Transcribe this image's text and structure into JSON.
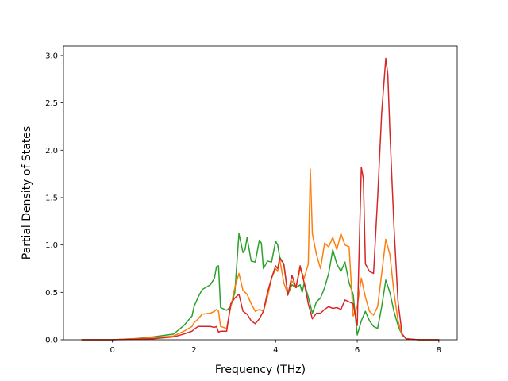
{
  "chart_data": {
    "type": "line",
    "title": "",
    "xlabel": "Frequency (THz)",
    "ylabel": "Partial Density of States",
    "xlim": [
      -1.2,
      8.45
    ],
    "ylim": [
      0,
      3.1
    ],
    "grid": false,
    "legend": "none",
    "xticks": [
      0,
      2,
      4,
      6,
      8
    ],
    "xtick_labels": [
      "0",
      "2",
      "4",
      "6",
      "8"
    ],
    "yticks": [
      0,
      0.5,
      1.0,
      1.5,
      2.0,
      2.5,
      3.0
    ],
    "ytick_labels": [
      "0.0",
      "0.5",
      "1.0",
      "1.5",
      "2.0",
      "2.5",
      "3.0"
    ],
    "series": [
      {
        "color": "#2ca02c",
        "x": [
          -0.75,
          0,
          0.5,
          1.0,
          1.5,
          1.75,
          1.95,
          2.0,
          2.1,
          2.2,
          2.4,
          2.5,
          2.55,
          2.6,
          2.65,
          2.8,
          2.9,
          3.0,
          3.1,
          3.2,
          3.25,
          3.3,
          3.4,
          3.5,
          3.6,
          3.65,
          3.7,
          3.8,
          3.9,
          4.0,
          4.05,
          4.1,
          4.2,
          4.3,
          4.4,
          4.5,
          4.6,
          4.65,
          4.7,
          4.8,
          4.9,
          5.0,
          5.1,
          5.2,
          5.3,
          5.4,
          5.5,
          5.6,
          5.7,
          5.8,
          5.9,
          6.0,
          6.1,
          6.2,
          6.3,
          6.4,
          6.5,
          6.6,
          6.7,
          6.8,
          6.9,
          7.0,
          7.1,
          7.2,
          7.5,
          8.0
        ],
        "values": [
          0,
          0,
          0.01,
          0.03,
          0.06,
          0.15,
          0.25,
          0.35,
          0.45,
          0.53,
          0.58,
          0.65,
          0.77,
          0.78,
          0.34,
          0.31,
          0.35,
          0.5,
          1.12,
          0.92,
          0.95,
          1.08,
          0.83,
          0.82,
          1.05,
          1.02,
          0.75,
          0.83,
          0.82,
          1.04,
          1.0,
          0.87,
          0.8,
          0.48,
          0.58,
          0.55,
          0.58,
          0.5,
          0.6,
          0.45,
          0.28,
          0.4,
          0.44,
          0.55,
          0.7,
          0.95,
          0.8,
          0.72,
          0.82,
          0.6,
          0.48,
          0.05,
          0.2,
          0.3,
          0.2,
          0.14,
          0.12,
          0.35,
          0.63,
          0.5,
          0.3,
          0.15,
          0.05,
          0.01,
          0,
          0
        ]
      },
      {
        "color": "#ff7f0e",
        "x": [
          -0.75,
          0,
          0.5,
          1.0,
          1.5,
          1.75,
          1.95,
          2.0,
          2.1,
          2.2,
          2.4,
          2.5,
          2.55,
          2.6,
          2.65,
          2.8,
          2.9,
          3.0,
          3.1,
          3.2,
          3.3,
          3.4,
          3.5,
          3.6,
          3.7,
          3.8,
          3.9,
          4.0,
          4.05,
          4.1,
          4.2,
          4.3,
          4.4,
          4.5,
          4.6,
          4.7,
          4.8,
          4.85,
          4.9,
          5.0,
          5.1,
          5.2,
          5.3,
          5.4,
          5.5,
          5.6,
          5.7,
          5.8,
          5.9,
          6.0,
          6.1,
          6.2,
          6.3,
          6.4,
          6.5,
          6.6,
          6.7,
          6.8,
          6.9,
          7.0,
          7.1,
          7.2,
          7.5,
          8.0
        ],
        "values": [
          0,
          0,
          0.01,
          0.02,
          0.04,
          0.09,
          0.14,
          0.18,
          0.22,
          0.27,
          0.28,
          0.3,
          0.32,
          0.3,
          0.14,
          0.12,
          0.35,
          0.55,
          0.7,
          0.52,
          0.48,
          0.38,
          0.3,
          0.32,
          0.3,
          0.45,
          0.65,
          0.75,
          0.72,
          0.85,
          0.6,
          0.48,
          0.62,
          0.55,
          0.75,
          0.65,
          0.8,
          1.8,
          1.12,
          0.9,
          0.75,
          1.02,
          0.98,
          1.08,
          0.95,
          1.12,
          1.0,
          0.98,
          0.25,
          0.35,
          0.65,
          0.45,
          0.3,
          0.26,
          0.35,
          0.7,
          1.06,
          0.9,
          0.5,
          0.2,
          0.05,
          0.01,
          0,
          0
        ]
      },
      {
        "color": "#d62728",
        "x": [
          -0.75,
          0,
          0.5,
          1.0,
          1.5,
          1.75,
          1.95,
          2.0,
          2.1,
          2.2,
          2.4,
          2.5,
          2.55,
          2.6,
          2.65,
          2.8,
          2.9,
          3.0,
          3.1,
          3.2,
          3.3,
          3.4,
          3.5,
          3.6,
          3.7,
          3.8,
          3.9,
          4.0,
          4.05,
          4.1,
          4.2,
          4.3,
          4.4,
          4.5,
          4.6,
          4.7,
          4.8,
          4.9,
          5.0,
          5.1,
          5.2,
          5.3,
          5.4,
          5.5,
          5.6,
          5.7,
          5.8,
          5.9,
          6.0,
          6.05,
          6.1,
          6.15,
          6.2,
          6.3,
          6.4,
          6.5,
          6.6,
          6.7,
          6.75,
          6.8,
          6.9,
          7.0,
          7.1,
          7.2,
          7.5,
          8.0
        ],
        "values": [
          0,
          0,
          0.005,
          0.01,
          0.03,
          0.06,
          0.09,
          0.11,
          0.14,
          0.14,
          0.14,
          0.13,
          0.14,
          0.08,
          0.09,
          0.09,
          0.38,
          0.44,
          0.48,
          0.3,
          0.27,
          0.2,
          0.17,
          0.22,
          0.3,
          0.5,
          0.65,
          0.78,
          0.75,
          0.86,
          0.8,
          0.47,
          0.68,
          0.55,
          0.78,
          0.6,
          0.38,
          0.22,
          0.28,
          0.28,
          0.32,
          0.35,
          0.33,
          0.34,
          0.32,
          0.42,
          0.4,
          0.38,
          0.15,
          1.0,
          1.82,
          1.7,
          0.8,
          0.72,
          0.7,
          1.5,
          2.4,
          2.97,
          2.8,
          2.2,
          1.2,
          0.4,
          0.06,
          0.01,
          0,
          0
        ]
      }
    ]
  }
}
